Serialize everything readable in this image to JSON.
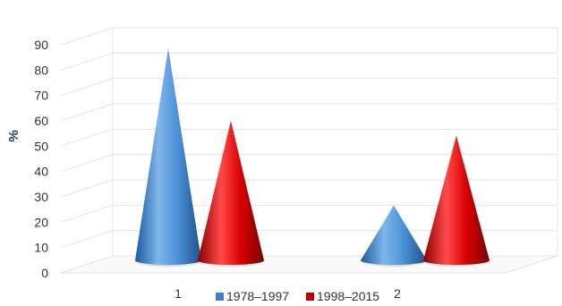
{
  "chart_data": {
    "type": "bar",
    "subtype": "3d-cone",
    "ylabel": "%",
    "ylim": [
      0,
      90
    ],
    "yticks": [
      0,
      10,
      20,
      30,
      40,
      50,
      60,
      70,
      80,
      90
    ],
    "categories": [
      "1",
      "2"
    ],
    "series": [
      {
        "name": "1978–1997",
        "values": [
          85,
          22
        ],
        "color": "#3a82cc"
      },
      {
        "name": "1998–2015",
        "values": [
          56,
          50
        ],
        "color": "#c00000"
      }
    ],
    "grid": true,
    "legend_position": "bottom"
  }
}
